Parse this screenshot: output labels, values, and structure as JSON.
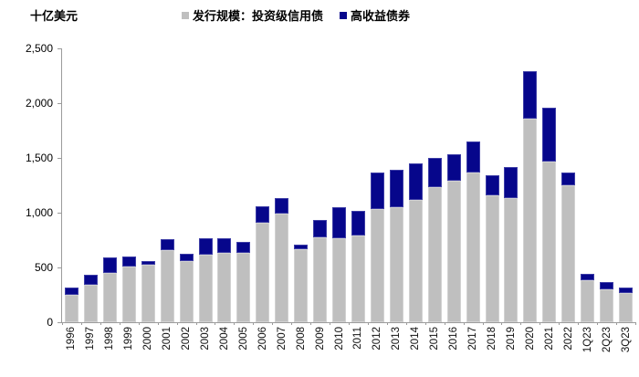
{
  "title": "十亿美元",
  "legend": {
    "items": [
      {
        "label": "发行规模：投资级信用债",
        "color": "#BFBFBF"
      },
      {
        "label": "高收益债券",
        "color": "#06068B"
      }
    ]
  },
  "chart_data": {
    "type": "bar",
    "stacked": true,
    "title": "十亿美元",
    "ylabel": "十亿美元",
    "xlabel": "",
    "grid": false,
    "legend_position": "top",
    "ylim": [
      0,
      2500
    ],
    "ytick_step": 500,
    "ytick_labels": [
      "0",
      "500",
      "1,000",
      "1,500",
      "2,000",
      "2,500"
    ],
    "categories": [
      "1996",
      "1997",
      "1998",
      "1999",
      "2000",
      "2001",
      "2002",
      "2003",
      "2004",
      "2005",
      "2006",
      "2007",
      "2008",
      "2009",
      "2010",
      "2011",
      "2012",
      "2013",
      "2014",
      "2015",
      "2016",
      "2017",
      "2018",
      "2019",
      "2020",
      "2021",
      "2022",
      "1Q23",
      "2Q23",
      "3Q23"
    ],
    "series": [
      {
        "name": "发行规模：投资级信用债",
        "color": "#BFBFBF",
        "values": [
          250,
          340,
          450,
          510,
          525,
          660,
          560,
          620,
          630,
          630,
          905,
          995,
          670,
          775,
          770,
          790,
          1030,
          1050,
          1120,
          1230,
          1290,
          1370,
          1155,
          1130,
          1855,
          1470,
          1250,
          380,
          300,
          270
        ]
      },
      {
        "name": "高收益债券",
        "color": "#06068B",
        "values": [
          65,
          95,
          140,
          90,
          35,
          100,
          65,
          150,
          140,
          105,
          155,
          135,
          35,
          160,
          280,
          225,
          340,
          340,
          330,
          270,
          245,
          280,
          185,
          290,
          435,
          490,
          115,
          60,
          65,
          45
        ]
      }
    ]
  }
}
